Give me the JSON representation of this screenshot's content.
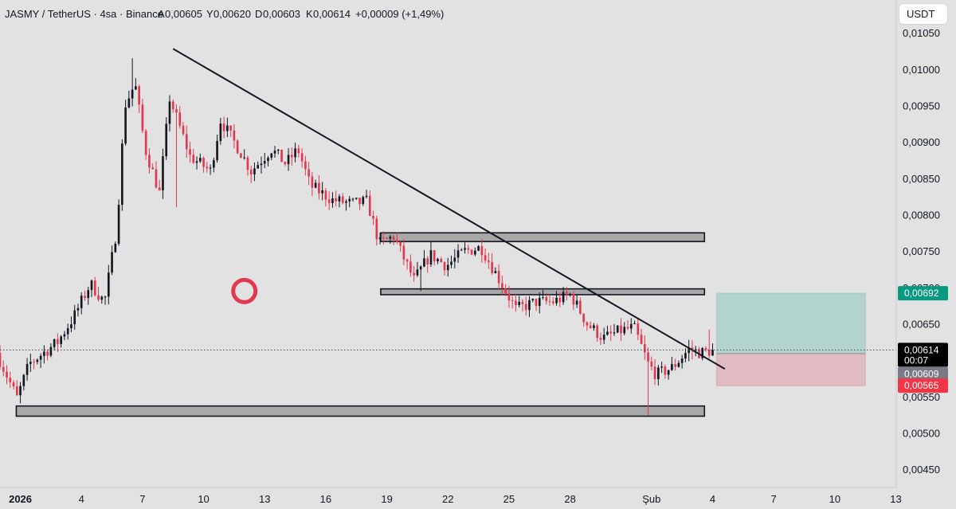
{
  "header": {
    "symbol": "JASMY / TetherUS · 4sa · Binance",
    "open_label": "A",
    "open": "0,00605",
    "high_label": "Y",
    "high": "0,00620",
    "low_label": "D",
    "low": "0,00603",
    "close_label": "K",
    "close": "0,00614",
    "change": "+0,00009 (+1,49%)"
  },
  "currency_button": "USDT",
  "colors": {
    "up": "#131722",
    "down": "#e2384f",
    "profit": "#b2d4cc",
    "loss": "#e0bcc2",
    "tag_target": "#089981",
    "tag_stop": "#f23645",
    "tag_last": "#000000",
    "tag_entry": "#787b86",
    "background": "#e2e2e2"
  },
  "chart_data": {
    "type": "candlestick",
    "title": "JASMY / TetherUS · 4sa · Binance",
    "y_axis": {
      "range": [
        0.00425,
        0.01095
      ],
      "ticks": [
        0.0105,
        0.01,
        0.0095,
        0.009,
        0.0085,
        0.008,
        0.0075,
        0.007,
        0.0065,
        0.006,
        0.0055,
        0.005,
        0.0045
      ],
      "tick_labels": [
        "0,01050",
        "0,01000",
        "0,00950",
        "0,00900",
        "0,00850",
        "0,00800",
        "0,00750",
        "0,00700",
        "0,00650",
        "0,00600",
        "0,00550",
        "0,00500",
        "0,00450"
      ]
    },
    "x_axis": {
      "unit": "day",
      "candle_interval_hours": 4,
      "visible_range": [
        0,
        44
      ],
      "ticks": [
        {
          "day": 1,
          "label": "2026",
          "bold": true
        },
        {
          "day": 4,
          "label": "4"
        },
        {
          "day": 7,
          "label": "7"
        },
        {
          "day": 10,
          "label": "10"
        },
        {
          "day": 13,
          "label": "13"
        },
        {
          "day": 16,
          "label": "16"
        },
        {
          "day": 19,
          "label": "19"
        },
        {
          "day": 22,
          "label": "22"
        },
        {
          "day": 25,
          "label": "25"
        },
        {
          "day": 28,
          "label": "28"
        },
        {
          "day": 32,
          "label": "Şub"
        },
        {
          "day": 35,
          "label": "4"
        },
        {
          "day": 38,
          "label": "7"
        },
        {
          "day": 41,
          "label": "10"
        },
        {
          "day": 44,
          "label": "13"
        }
      ]
    },
    "price_path": [
      [
        0,
        0.0061
      ],
      [
        1.0,
        0.00548
      ],
      [
        1.6,
        0.00595
      ],
      [
        3.0,
        0.00625
      ],
      [
        3.8,
        0.0066
      ],
      [
        4.6,
        0.00705
      ],
      [
        5.3,
        0.0068
      ],
      [
        5.9,
        0.0078
      ],
      [
        6.3,
        0.0095
      ],
      [
        6.8,
        0.0098
      ],
      [
        7.3,
        0.0089
      ],
      [
        8.0,
        0.0083
      ],
      [
        8.5,
        0.0096
      ],
      [
        9.5,
        0.0088
      ],
      [
        10.5,
        0.0086
      ],
      [
        11.0,
        0.0093
      ],
      [
        12.0,
        0.00885
      ],
      [
        12.5,
        0.0086
      ],
      [
        13.5,
        0.0089
      ],
      [
        14.2,
        0.0087
      ],
      [
        14.8,
        0.0089
      ],
      [
        15.4,
        0.0084
      ],
      [
        16.5,
        0.0082
      ],
      [
        17.5,
        0.00815
      ],
      [
        18.2,
        0.00818
      ],
      [
        18.8,
        0.0076
      ],
      [
        19.5,
        0.0077
      ],
      [
        20.5,
        0.0071
      ],
      [
        21.3,
        0.00745
      ],
      [
        22.1,
        0.0073
      ],
      [
        23.0,
        0.0075
      ],
      [
        23.8,
        0.00755
      ],
      [
        24.5,
        0.0072
      ],
      [
        25.5,
        0.0067
      ],
      [
        26.5,
        0.0068
      ],
      [
        27.3,
        0.0068
      ],
      [
        28.2,
        0.0069
      ],
      [
        29.0,
        0.0065
      ],
      [
        29.8,
        0.0063
      ],
      [
        30.6,
        0.0064
      ],
      [
        31.3,
        0.00645
      ],
      [
        32.0,
        0.00595
      ],
      [
        32.4,
        0.0058
      ],
      [
        33.2,
        0.0059
      ],
      [
        34.0,
        0.00615
      ],
      [
        34.6,
        0.0061
      ],
      [
        35.2,
        0.00614
      ]
    ],
    "candle_specials": [
      {
        "day": 6.5,
        "high": 0.01015
      },
      {
        "day": 8.6,
        "low": 0.0081
      },
      {
        "day": 31.9,
        "low": 0.00524
      },
      {
        "day": 34.9,
        "high": 0.00642
      },
      {
        "day": 20.6,
        "low": 0.00695
      }
    ],
    "trendline": {
      "from": [
        8.5,
        0.01028
      ],
      "to": [
        35.6,
        0.00588
      ]
    },
    "zones": [
      {
        "name": "resistance-1",
        "x": [
          18.7,
          34.6
        ],
        "y": [
          0.00763,
          0.00775
        ]
      },
      {
        "name": "resistance-2",
        "x": [
          18.7,
          34.6
        ],
        "y": [
          0.0069,
          0.00698
        ]
      },
      {
        "name": "support",
        "x": [
          0.8,
          34.6
        ],
        "y": [
          0.00523,
          0.00537
        ]
      }
    ],
    "position": {
      "side": "long",
      "x": [
        35.2,
        42.5
      ],
      "target": 0.00692,
      "entry": 0.00609,
      "stop": 0.00565
    },
    "circle_marker": {
      "day": 12.0,
      "price": 0.00695
    },
    "last_price": 0.00614,
    "price_tags": [
      {
        "name": "target-price",
        "value": 0.00692,
        "label": "0,00692",
        "kind": "target"
      },
      {
        "name": "last-price",
        "value": 0.00614,
        "label": "0,00614",
        "countdown": "00:07",
        "kind": "last"
      },
      {
        "name": "entry-price",
        "value": 0.00609,
        "label": "0,00609",
        "kind": "entry"
      },
      {
        "name": "stop-price",
        "value": 0.00565,
        "label": "0,00565",
        "kind": "stop"
      }
    ]
  }
}
